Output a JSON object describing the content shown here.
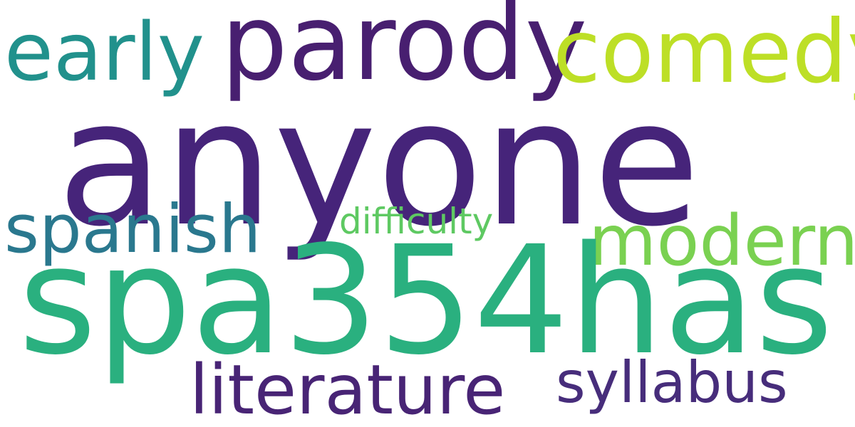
{
  "words": [
    {
      "key": "early",
      "text": "early",
      "color": "#21918c"
    },
    {
      "key": "parody",
      "text": "parody",
      "color": "#481f70"
    },
    {
      "key": "comedy",
      "text": "comedy",
      "color": "#bddf26"
    },
    {
      "key": "anyone",
      "text": "anyone",
      "color": "#46247a"
    },
    {
      "key": "spanish",
      "text": "spanish",
      "color": "#2a788e"
    },
    {
      "key": "difficulty",
      "text": "difficulty",
      "color": "#5ec962"
    },
    {
      "key": "modern",
      "text": "modern",
      "color": "#7ad151"
    },
    {
      "key": "spa354has",
      "text": "spa354has",
      "color": "#2ab07f"
    },
    {
      "key": "literature",
      "text": "literature",
      "color": "#482475"
    },
    {
      "key": "syllabus",
      "text": "syllabus",
      "color": "#472d7b"
    }
  ]
}
